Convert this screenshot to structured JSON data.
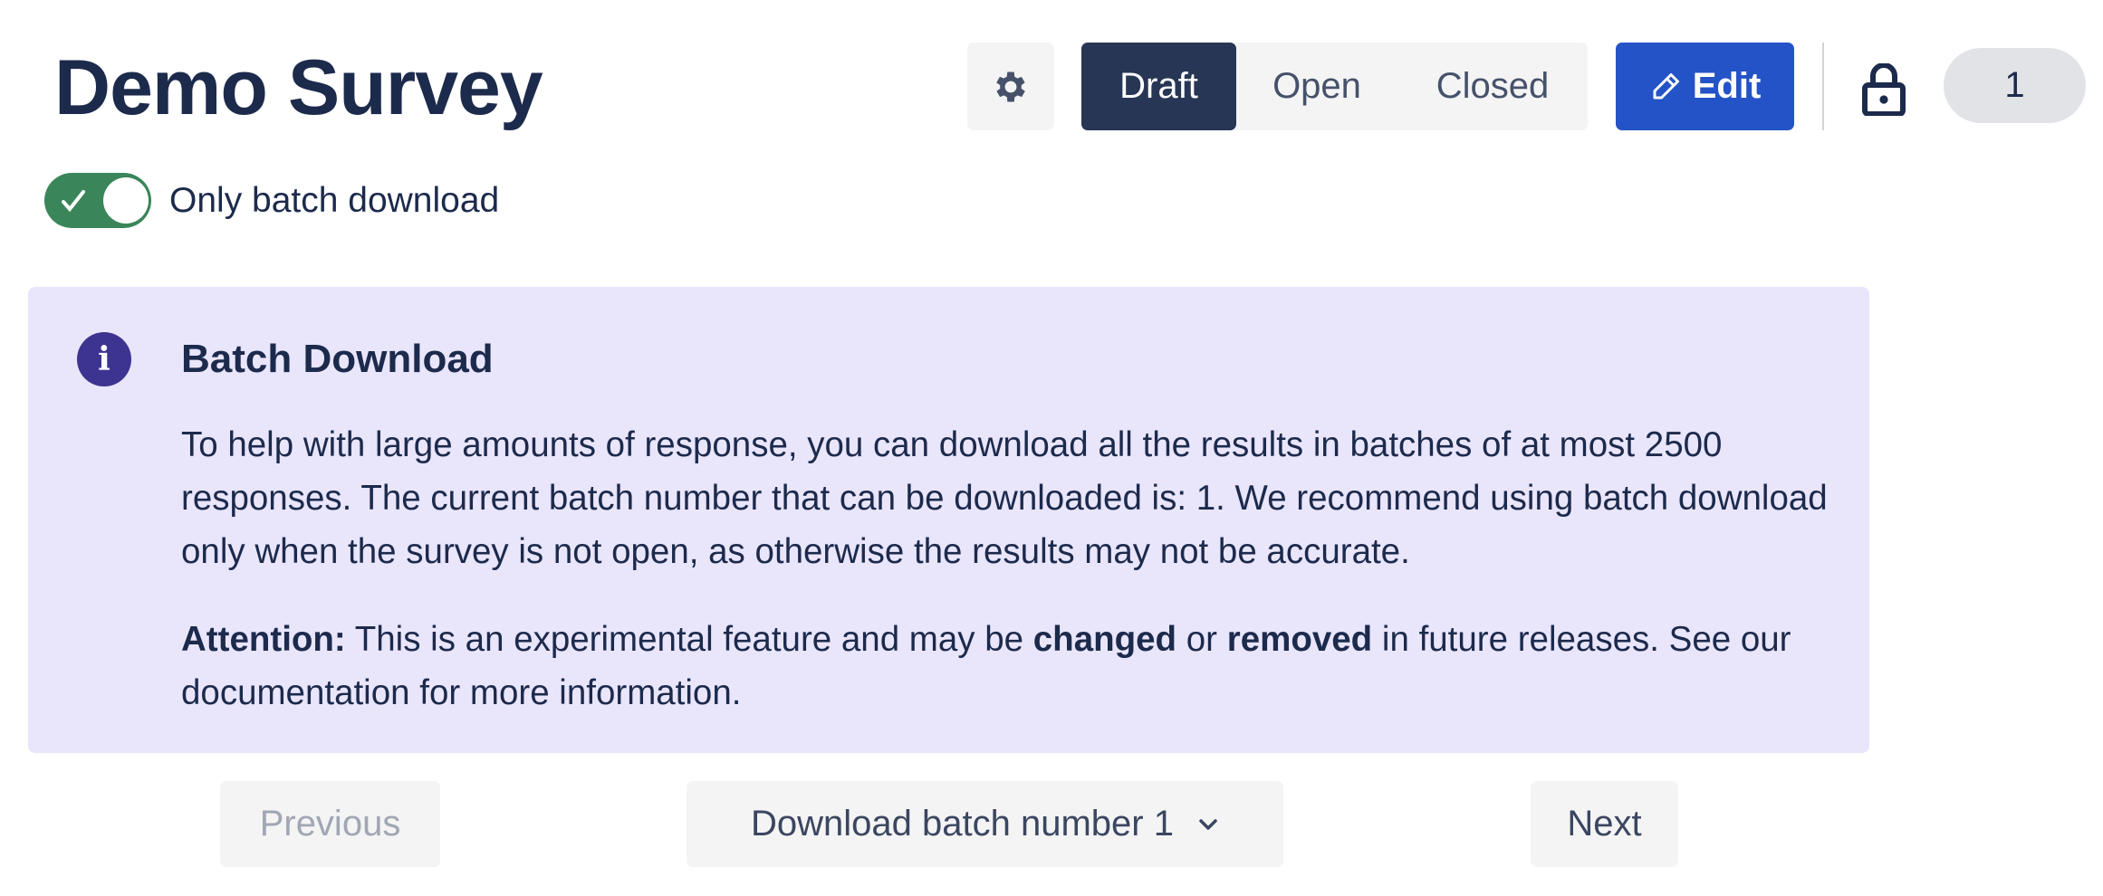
{
  "header": {
    "title": "Demo Survey",
    "settings_icon": "gear-icon",
    "status_tabs": [
      {
        "label": "Draft",
        "active": true
      },
      {
        "label": "Open",
        "active": false
      },
      {
        "label": "Closed",
        "active": false
      }
    ],
    "edit_label": "Edit",
    "lock_icon": "lock-icon",
    "count_badge": "1"
  },
  "toggle": {
    "label": "Only batch download",
    "checked": true,
    "color": "#3a8559"
  },
  "alert": {
    "icon": "info-icon",
    "title": "Batch Download",
    "body": "To help with large amounts of response, you can download all the results in batches of at most 2500 responses. The current batch number that can be downloaded is: 1. We recommend using batch download only when the survey is not open, as otherwise the results may not be accurate.",
    "attention_label": "Attention:",
    "attention_1": " This is an experimental feature and may be ",
    "changed": "changed",
    "or": " or ",
    "removed": "removed",
    "attention_2": " in future releases. See our documentation for more information.",
    "bg": "#e9e5fb"
  },
  "pagination": {
    "previous": "Previous",
    "dropdown": "Download batch number 1",
    "next": "Next"
  }
}
